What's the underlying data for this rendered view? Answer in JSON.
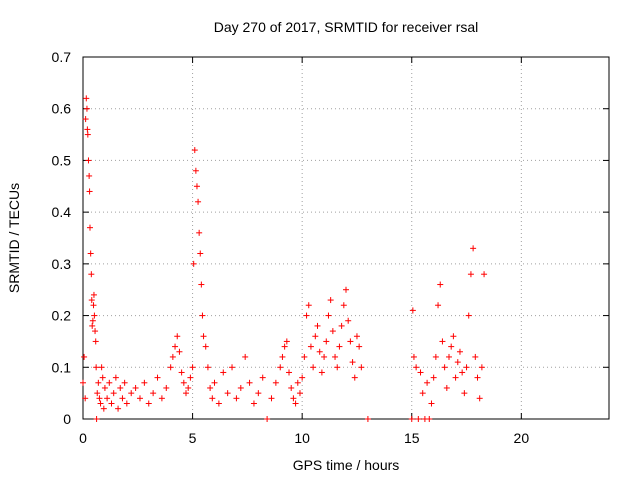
{
  "chart_data": {
    "type": "scatter",
    "title": "Day 270 of 2017, SRMTID for receiver rsal",
    "xlabel": "GPS time / hours",
    "ylabel": "SRMTID / TECUs",
    "xlim": [
      0,
      24
    ],
    "ylim": [
      0,
      0.7
    ],
    "x_ticks": [
      0,
      5,
      10,
      15,
      20
    ],
    "y_ticks": [
      0,
      0.1,
      0.2,
      0.3,
      0.4,
      0.5,
      0.6,
      0.7
    ],
    "y_tick_labels": [
      "0",
      "0.1",
      "0.2",
      "0.3",
      "0.4",
      "0.5",
      "0.6",
      "0.7"
    ],
    "grid": true,
    "legend": "none",
    "marker": "+",
    "marker_color": "#ff0000",
    "series": [
      {
        "name": "SRMTID",
        "x": [
          0.0,
          0.05,
          0.1,
          0.12,
          0.15,
          0.18,
          0.2,
          0.22,
          0.25,
          0.28,
          0.3,
          0.32,
          0.35,
          0.38,
          0.4,
          0.42,
          0.45,
          0.48,
          0.5,
          0.52,
          0.55,
          0.58,
          0.6,
          0.62,
          0.65,
          0.7,
          0.75,
          0.8,
          0.85,
          0.9,
          0.95,
          1.0,
          1.1,
          1.2,
          1.3,
          1.4,
          1.5,
          1.6,
          1.7,
          1.8,
          1.9,
          2.0,
          2.2,
          2.4,
          2.6,
          2.8,
          3.0,
          3.2,
          3.4,
          3.6,
          3.8,
          4.0,
          4.1,
          4.2,
          4.3,
          4.4,
          4.5,
          4.6,
          4.7,
          4.8,
          4.9,
          5.0,
          5.05,
          5.1,
          5.15,
          5.2,
          5.25,
          5.3,
          5.35,
          5.4,
          5.45,
          5.5,
          5.6,
          5.7,
          5.8,
          5.9,
          6.0,
          6.2,
          6.4,
          6.6,
          6.8,
          7.0,
          7.2,
          7.4,
          7.6,
          7.8,
          8.0,
          8.2,
          8.4,
          8.6,
          8.8,
          9.0,
          9.1,
          9.2,
          9.3,
          9.4,
          9.5,
          9.6,
          9.7,
          9.8,
          9.9,
          10.0,
          10.1,
          10.2,
          10.3,
          10.4,
          10.5,
          10.6,
          10.7,
          10.8,
          10.9,
          11.0,
          11.1,
          11.2,
          11.3,
          11.4,
          11.5,
          11.6,
          11.7,
          11.8,
          11.9,
          12.0,
          12.1,
          12.2,
          12.3,
          12.4,
          12.5,
          12.6,
          12.7,
          13.0,
          15.0,
          15.05,
          15.1,
          15.2,
          15.3,
          15.4,
          15.5,
          15.6,
          15.7,
          15.8,
          15.9,
          16.0,
          16.1,
          16.2,
          16.3,
          16.4,
          16.5,
          16.6,
          16.7,
          16.8,
          16.9,
          17.0,
          17.1,
          17.2,
          17.3,
          17.4,
          17.5,
          17.6,
          17.7,
          17.8,
          17.9,
          18.0,
          18.1,
          18.2,
          18.3
        ],
        "y": [
          0.07,
          0.12,
          0.04,
          0.58,
          0.62,
          0.6,
          0.56,
          0.55,
          0.5,
          0.47,
          0.44,
          0.37,
          0.32,
          0.28,
          0.23,
          0.18,
          0.19,
          0.22,
          0.24,
          0.2,
          0.17,
          0.15,
          0.1,
          0.0,
          0.05,
          0.07,
          0.04,
          0.03,
          0.1,
          0.08,
          0.02,
          0.06,
          0.04,
          0.07,
          0.03,
          0.05,
          0.08,
          0.02,
          0.06,
          0.04,
          0.07,
          0.03,
          0.05,
          0.06,
          0.04,
          0.07,
          0.03,
          0.05,
          0.08,
          0.04,
          0.06,
          0.1,
          0.12,
          0.14,
          0.16,
          0.13,
          0.09,
          0.07,
          0.05,
          0.06,
          0.08,
          0.1,
          0.3,
          0.52,
          0.48,
          0.45,
          0.42,
          0.36,
          0.32,
          0.26,
          0.2,
          0.16,
          0.14,
          0.1,
          0.06,
          0.04,
          0.07,
          0.03,
          0.09,
          0.05,
          0.1,
          0.04,
          0.06,
          0.12,
          0.07,
          0.03,
          0.05,
          0.08,
          0.0,
          0.04,
          0.07,
          0.1,
          0.12,
          0.14,
          0.15,
          0.09,
          0.06,
          0.04,
          0.03,
          0.07,
          0.05,
          0.08,
          0.12,
          0.2,
          0.22,
          0.14,
          0.1,
          0.16,
          0.18,
          0.13,
          0.09,
          0.12,
          0.15,
          0.2,
          0.23,
          0.17,
          0.12,
          0.1,
          0.14,
          0.18,
          0.22,
          0.25,
          0.19,
          0.15,
          0.11,
          0.08,
          0.16,
          0.14,
          0.1,
          0.0,
          0.0,
          0.21,
          0.12,
          0.1,
          0.0,
          0.09,
          0.05,
          0.0,
          0.07,
          0.0,
          0.03,
          0.08,
          0.12,
          0.22,
          0.26,
          0.15,
          0.1,
          0.06,
          0.12,
          0.14,
          0.16,
          0.08,
          0.11,
          0.13,
          0.09,
          0.05,
          0.1,
          0.2,
          0.28,
          0.33,
          0.12,
          0.08,
          0.04,
          0.1,
          0.28
        ]
      }
    ]
  }
}
